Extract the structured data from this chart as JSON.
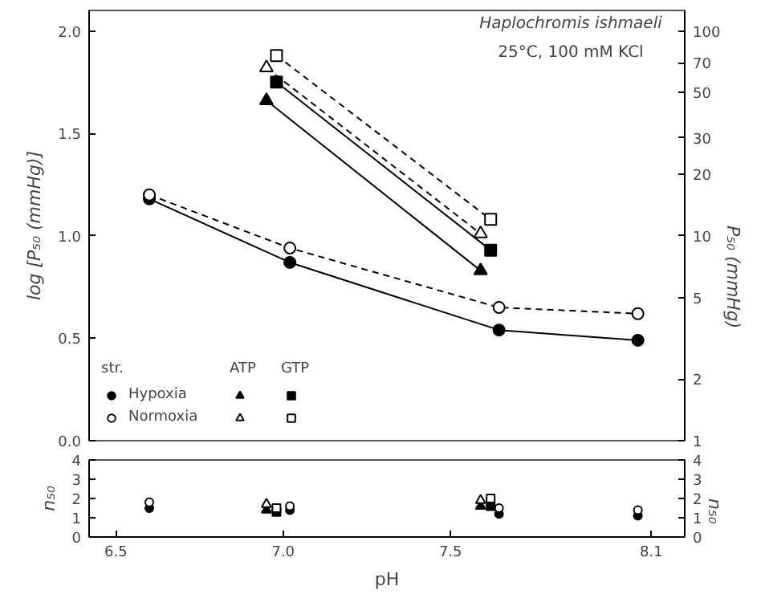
{
  "chart_data": [
    {
      "type": "line",
      "ylabel": "log [P₅₀ (mmHg)]",
      "y2label": "P₅₀ (mmHg)",
      "annotations": [
        "Haplochromis ishmaeli",
        "25°C, 100 mM KCl",
        "str.",
        "ATP",
        "GTP"
      ],
      "xlim": [
        6.42,
        8.2
      ],
      "ylim": [
        0,
        2.1
      ],
      "yticks": [
        {
          "value": 0,
          "label": "0.0"
        },
        0.5,
        {
          "value": 1,
          "label": "1.0"
        },
        1.5,
        {
          "value": 2,
          "label": "2.0"
        }
      ],
      "y2lim": [
        1,
        125.9
      ],
      "y2ticks": [
        1,
        2,
        5,
        10,
        20,
        30,
        50,
        70,
        100
      ],
      "log": "y2",
      "tick_labels": "y",
      "legend": "bottom left",
      "grid": false,
      "series": [
        {
          "name": "Hypoxia",
          "marker": "circle",
          "line_style": "solid",
          "color": "#000000",
          "x": [
            6.6,
            7.02,
            7.645,
            8.06
          ],
          "values": [
            1.18,
            0.87,
            0.54,
            0.49
          ]
        },
        {
          "name": "Normoxia",
          "marker": "circle",
          "line_style": "dashed",
          "color": "#ffffff",
          "x": [
            6.6,
            7.02,
            7.645,
            8.06
          ],
          "values": [
            1.2,
            0.94,
            0.65,
            0.62
          ]
        },
        {
          "marker": "triangle",
          "line_style": "solid",
          "color": "#000000",
          "x": [
            6.95,
            7.59
          ],
          "values": [
            1.66,
            0.83
          ]
        },
        {
          "marker": "triangle",
          "line_style": "dashed",
          "color": "#ffffff",
          "x": [
            6.95,
            7.59
          ],
          "values": [
            1.82,
            1.01
          ]
        },
        {
          "marker": "square",
          "line_style": "solid",
          "color": "#000000",
          "x": [
            6.98,
            7.62
          ],
          "values": [
            1.75,
            0.93
          ]
        },
        {
          "marker": "square",
          "line_style": "dashed",
          "color": "#ffffff",
          "x": [
            6.98,
            7.62
          ],
          "values": [
            1.88,
            1.08
          ]
        }
      ]
    },
    {
      "type": "scatter",
      "xlabel": "pH",
      "ylabel": "n₅₀",
      "y2label": "n₅₀",
      "xlim": [
        6.42,
        8.2
      ],
      "xticks": [
        6.5,
        {
          "value": 7,
          "label": "7.0"
        },
        7.5,
        8.1
      ],
      "ylim": [
        0,
        4
      ],
      "yticks": [
        0,
        1,
        2,
        3,
        4
      ],
      "y2lim": [
        0,
        4
      ],
      "y2ticks": [
        0,
        1,
        2,
        3,
        4
      ],
      "grid": false,
      "series": [
        {
          "marker": "circle",
          "color": "#000000",
          "x": [
            6.6,
            7.02,
            7.645,
            8.06
          ],
          "values": [
            1.5,
            1.4,
            1.2,
            1.1
          ]
        },
        {
          "marker": "circle",
          "color": "#ffffff",
          "x": [
            6.6,
            7.02,
            7.645,
            8.06
          ],
          "values": [
            1.8,
            1.6,
            1.5,
            1.4
          ]
        },
        {
          "marker": "triangle",
          "color": "#000000",
          "x": [
            6.95,
            7.59
          ],
          "values": [
            1.4,
            1.6
          ]
        },
        {
          "marker": "triangle",
          "color": "#ffffff",
          "x": [
            6.95,
            7.59
          ],
          "values": [
            1.7,
            1.9
          ]
        },
        {
          "marker": "square",
          "color": "#000000",
          "x": [
            6.98,
            7.62
          ],
          "values": [
            1.3,
            1.6
          ]
        },
        {
          "marker": "square",
          "color": "#ffffff",
          "x": [
            6.98,
            7.62
          ],
          "values": [
            1.5,
            2.0
          ]
        }
      ]
    }
  ]
}
